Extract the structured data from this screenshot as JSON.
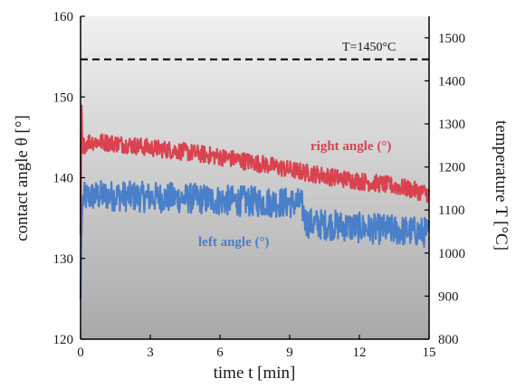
{
  "chart_data": {
    "type": "line",
    "xlabel": "time t [min]",
    "ylabel": "contact angle θ [°]",
    "y2label": "temperature T [°C]",
    "xlim": [
      0,
      15
    ],
    "ylim": [
      120,
      160
    ],
    "y2lim": [
      800,
      1550
    ],
    "x_ticks": [
      "0",
      "3",
      "6",
      "9",
      "12",
      "15"
    ],
    "y_ticks": [
      "120",
      "130",
      "140",
      "150",
      "160"
    ],
    "y2_ticks": [
      "800",
      "900",
      "1000",
      "1100",
      "1200",
      "1300",
      "1400",
      "1500"
    ],
    "grid": false,
    "background": "gradient-gray",
    "series": [
      {
        "name": "right angle (°)",
        "axis": "left",
        "color": "#d9434f",
        "x": [
          0,
          0.03,
          0.08,
          0.15,
          0.3,
          0.5,
          1,
          2,
          3,
          4,
          5,
          6,
          7,
          8,
          9,
          10,
          11,
          12,
          13,
          14,
          15
        ],
        "values": [
          133,
          151,
          143,
          144,
          144.5,
          144.5,
          144.4,
          144.1,
          143.7,
          143.4,
          143,
          142.6,
          142.1,
          141.6,
          141,
          140.5,
          140,
          139.6,
          139.2,
          138.7,
          138
        ]
      },
      {
        "name": "left angle (°)",
        "axis": "left",
        "color": "#4a7fc9",
        "x": [
          0,
          0.03,
          0.08,
          0.15,
          0.3,
          0.5,
          1,
          2,
          3,
          4,
          5,
          6,
          7,
          8,
          9,
          9.5,
          9.7,
          10,
          11,
          12,
          13,
          14,
          15
        ],
        "values": [
          125,
          132,
          137,
          137.5,
          137.6,
          137.7,
          137.8,
          137.7,
          137.6,
          137.5,
          137.4,
          137.2,
          137.1,
          137,
          136.9,
          136.8,
          134.5,
          134.3,
          134.1,
          133.8,
          133.6,
          133.4,
          133.2
        ]
      },
      {
        "name": "T=1450°C",
        "axis": "right",
        "style": "dashed",
        "color": "#000000",
        "x": [
          0,
          15
        ],
        "values": [
          1450,
          1450
        ]
      }
    ]
  }
}
